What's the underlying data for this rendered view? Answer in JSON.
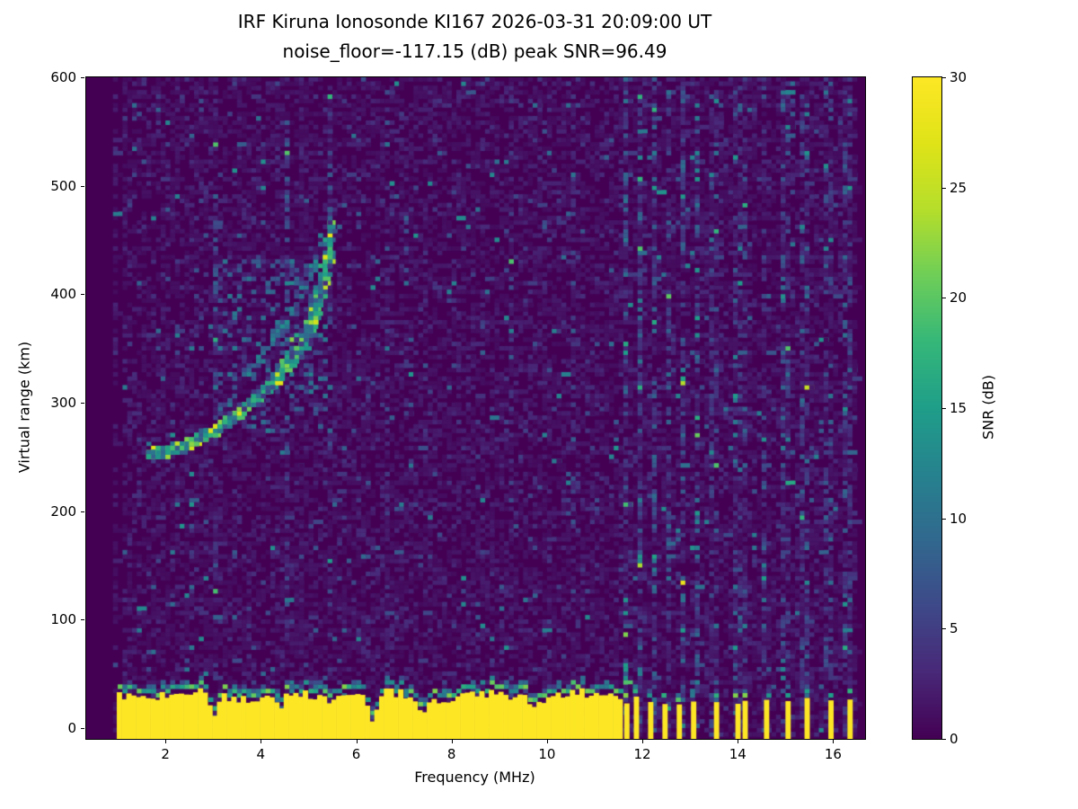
{
  "figure": {
    "title_line1": "IRF Kiruna Ionosonde KI167 2026-03-31 20:09:00  UT",
    "title_line2": "noise_floor=-117.15 (dB) peak SNR=96.49",
    "xlabel": "Frequency (MHz)",
    "ylabel": "Virtual range (km)",
    "colorbar_label": "SNR (dB)"
  },
  "chart_data": {
    "type": "heatmap",
    "title": "IRF Kiruna Ionosonde KI167 2026-03-31 20:09:00  UT",
    "subtitle": "noise_floor=-117.15 (dB) peak SNR=96.49",
    "station": "KI167",
    "timestamp_ut": "2026-03-31 20:09:00",
    "noise_floor_db": -117.15,
    "peak_snr_db": 96.49,
    "xlabel": "Frequency (MHz)",
    "ylabel": "Virtual range (km)",
    "x_range": [
      0.34,
      16.67
    ],
    "y_range": [
      -10,
      600
    ],
    "x_ticks": [
      2,
      4,
      6,
      8,
      10,
      12,
      14,
      16
    ],
    "y_ticks": [
      0,
      100,
      200,
      300,
      400,
      500,
      600
    ],
    "grid": false,
    "colorbar": {
      "label": "SNR (dB)",
      "min": 0,
      "max": 30,
      "ticks": [
        0,
        5,
        10,
        15,
        20,
        25,
        30
      ],
      "colormap": "viridis"
    },
    "colormap_stops": [
      [
        0,
        "#440154"
      ],
      [
        0.1,
        "#482878"
      ],
      [
        0.2,
        "#3e4989"
      ],
      [
        0.3,
        "#31688e"
      ],
      [
        0.4,
        "#26828e"
      ],
      [
        0.5,
        "#1f9e89"
      ],
      [
        0.6,
        "#35b779"
      ],
      [
        0.7,
        "#6ece58"
      ],
      [
        0.8,
        "#b5de2b"
      ],
      [
        0.9,
        "#dfe318"
      ],
      [
        1,
        "#fde725"
      ]
    ],
    "noise": {
      "start_freq": 0.95,
      "end_freq": 16.45,
      "mean_db": 1.0,
      "cell_df": 0.1,
      "cell_dh": 4
    },
    "ground_band": {
      "freq_start": 0.98,
      "freq_end": 11.55,
      "top_km_base": 30,
      "top_km_jitter": 10,
      "value_db": 30,
      "notches": [
        {
          "f": 2.97,
          "top": 10
        },
        {
          "f": 4.35,
          "top": 16
        },
        {
          "f": 6.3,
          "top": 3
        },
        {
          "f": 7.35,
          "top": 12
        },
        {
          "f": 9.7,
          "top": 18
        }
      ],
      "comb_start": 11.62,
      "comb_end": 13.15,
      "comb_period": 0.15,
      "comb_duty": 0.45,
      "isolated_columns": [
        13.5,
        13.95,
        14.1,
        14.55,
        15.0,
        15.4,
        15.9,
        16.3
      ]
    },
    "rfi": {
      "comb_gain": 3.5,
      "isolated_gain": 2.6,
      "faint_columns": [
        {
          "f": 2.95,
          "gain": 1.9
        },
        {
          "f": 4.5,
          "gain": 1.8
        },
        {
          "f": 5.43,
          "gain": 1.8
        },
        {
          "f": 6.6,
          "gain": 1.7
        },
        {
          "f": 9.25,
          "gain": 1.7
        },
        {
          "f": 10.5,
          "gain": 1.7
        }
      ]
    },
    "echo_trace": {
      "foF2_mhz": 5.4,
      "min_virtual_range_km": 250,
      "main": [
        [
          1.6,
          250
        ],
        [
          2.0,
          254
        ],
        [
          2.4,
          260
        ],
        [
          2.8,
          268
        ],
        [
          3.2,
          278
        ],
        [
          3.6,
          292
        ],
        [
          4.0,
          308
        ],
        [
          4.3,
          322
        ],
        [
          4.6,
          340
        ],
        [
          4.85,
          358
        ],
        [
          5.05,
          378
        ],
        [
          5.2,
          400
        ],
        [
          5.3,
          422
        ],
        [
          5.38,
          445
        ],
        [
          5.43,
          462
        ]
      ],
      "secondary": [
        [
          3.6,
          320
        ],
        [
          3.9,
          338
        ],
        [
          4.2,
          356
        ],
        [
          4.5,
          372
        ],
        [
          4.75,
          392
        ],
        [
          4.95,
          412
        ],
        [
          5.1,
          430
        ],
        [
          5.2,
          448
        ]
      ],
      "diffuse_region": {
        "f_min": 3.0,
        "f_max": 5.4,
        "h_min": 270,
        "h_max": 430
      },
      "streaks": [
        {
          "f": 5.43,
          "h0": 460,
          "h1": 570
        },
        {
          "f": 4.5,
          "h0": 390,
          "h1": 555
        }
      ]
    }
  }
}
